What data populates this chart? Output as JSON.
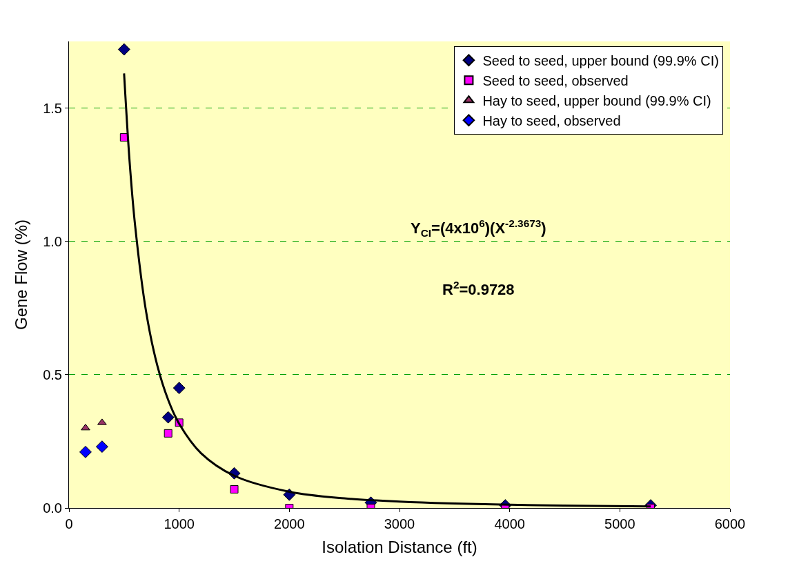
{
  "chart_data": {
    "type": "scatter",
    "xlabel": "Isolation Distance (ft)",
    "ylabel": "Gene Flow (%)",
    "xlim": [
      0,
      6000
    ],
    "xticks": [
      0,
      1000,
      2000,
      3000,
      4000,
      5000,
      6000
    ],
    "ylim": [
      0,
      1.75
    ],
    "yticks": [
      {
        "value": 0,
        "label": "0.0"
      },
      {
        "value": 0.5,
        "label": "0.5"
      },
      {
        "value": 1.0,
        "label": "1.0"
      },
      {
        "value": 1.5,
        "label": "1.5"
      }
    ],
    "grid": "y",
    "legend": "top right",
    "series": [
      {
        "name": "Seed to seed, upper bound (99.9% CI)",
        "color": "#000080",
        "marker": "diamond",
        "x": [
          500,
          900,
          1000,
          1500,
          2000,
          2740,
          3960,
          5280
        ],
        "values": [
          1.72,
          0.34,
          0.45,
          0.13,
          0.05,
          0.02,
          0.01,
          0.01
        ]
      },
      {
        "name": "Seed to seed, observed",
        "color": "#ff00ff",
        "marker": "square",
        "x": [
          500,
          900,
          1000,
          1500,
          2000,
          2740,
          3960,
          5280
        ],
        "values": [
          1.39,
          0.28,
          0.32,
          0.07,
          0,
          0,
          0,
          0
        ]
      },
      {
        "name": "Hay to seed, upper bound (99.9% CI)",
        "color": "#993366",
        "marker": "triangle",
        "x": [
          150,
          300
        ],
        "values": [
          0.3,
          0.32
        ]
      },
      {
        "name": "Hay to seed, observed",
        "color": "#0000ff",
        "marker": "diamond",
        "x": [
          150,
          300
        ],
        "values": [
          0.21,
          0.23
        ]
      },
      {
        "type": "line",
        "color": "#000000",
        "marker": "none",
        "line_style": "solid",
        "x": [
          500,
          550,
          600,
          700,
          800,
          900,
          1000,
          1200,
          1500,
          2000,
          2500,
          3000,
          4000,
          5280
        ],
        "values": [
          1.63,
          1.3,
          1.06,
          0.736,
          0.537,
          0.406,
          0.316,
          0.205,
          0.121,
          0.061,
          0.036,
          0.024,
          0.012,
          0.006
        ]
      }
    ],
    "annotations": [
      "Y$_{CI}$=(4x10$^{6}$)(X$^{-2.3673}$)",
      "R$^{2}$=0.9728"
    ]
  }
}
